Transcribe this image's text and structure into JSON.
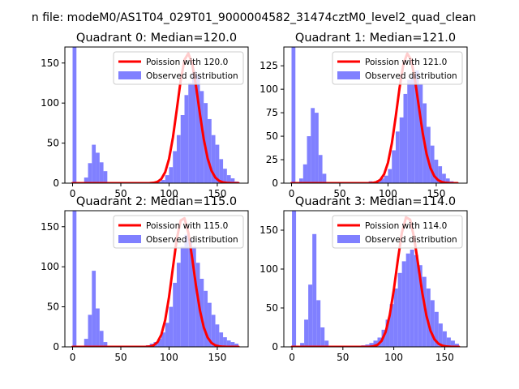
{
  "figure_title": "n file: modeM0/AS1T04_029T01_9000004582_31474cztM0_level2_quad_clean",
  "colors": {
    "poisson": "#ff0000",
    "observed": "#8080ff",
    "axis": "#000000"
  },
  "chart_data": [
    {
      "type": "bar",
      "title": "Quadrant 0: Median=120.0",
      "xlim": [
        -8,
        182
      ],
      "ylim": [
        0,
        170
      ],
      "xticks": [
        0,
        50,
        100,
        150
      ],
      "yticks": [
        0,
        50,
        100,
        150
      ],
      "legend": {
        "position": "top-right",
        "line_label": "Poission with 120.0",
        "bar_label": "Observed distribution"
      },
      "bin_width": 4,
      "bins": [
        [
          0,
          170
        ],
        [
          12,
          7
        ],
        [
          16,
          25
        ],
        [
          20,
          48
        ],
        [
          24,
          38
        ],
        [
          28,
          26
        ],
        [
          32,
          15
        ],
        [
          84,
          1
        ],
        [
          88,
          2
        ],
        [
          92,
          4
        ],
        [
          96,
          10
        ],
        [
          100,
          20
        ],
        [
          104,
          40
        ],
        [
          108,
          60
        ],
        [
          112,
          85
        ],
        [
          116,
          110
        ],
        [
          120,
          125
        ],
        [
          124,
          140
        ],
        [
          128,
          135
        ],
        [
          132,
          115
        ],
        [
          136,
          100
        ],
        [
          140,
          80
        ],
        [
          144,
          60
        ],
        [
          148,
          48
        ],
        [
          152,
          30
        ],
        [
          156,
          18
        ],
        [
          160,
          10
        ],
        [
          164,
          6
        ],
        [
          168,
          2
        ]
      ],
      "poisson": {
        "lambda": 120.0,
        "scale": 162
      }
    },
    {
      "type": "bar",
      "title": "Quadrant 1: Median=121.0",
      "xlim": [
        -8,
        182
      ],
      "ylim": [
        0,
        145
      ],
      "xticks": [
        0,
        50,
        100,
        150
      ],
      "yticks": [
        0,
        25,
        50,
        75,
        100,
        125
      ],
      "legend": {
        "position": "top-right",
        "line_label": "Poission with 121.0",
        "bar_label": "Observed distribution"
      },
      "bin_width": 4,
      "bins": [
        [
          0,
          145
        ],
        [
          8,
          5
        ],
        [
          12,
          20
        ],
        [
          16,
          50
        ],
        [
          20,
          80
        ],
        [
          24,
          75
        ],
        [
          28,
          30
        ],
        [
          32,
          10
        ],
        [
          80,
          2
        ],
        [
          88,
          3
        ],
        [
          92,
          5
        ],
        [
          96,
          8
        ],
        [
          100,
          15
        ],
        [
          104,
          35
        ],
        [
          108,
          55
        ],
        [
          112,
          70
        ],
        [
          116,
          95
        ],
        [
          120,
          110
        ],
        [
          124,
          115
        ],
        [
          128,
          120
        ],
        [
          132,
          105
        ],
        [
          136,
          85
        ],
        [
          140,
          60
        ],
        [
          144,
          40
        ],
        [
          148,
          25
        ],
        [
          152,
          18
        ],
        [
          156,
          10
        ],
        [
          160,
          5
        ],
        [
          164,
          2
        ]
      ],
      "poisson": {
        "lambda": 121.0,
        "scale": 138
      }
    },
    {
      "type": "bar",
      "title": "Quadrant 2: Median=115.0",
      "xlim": [
        -8,
        182
      ],
      "ylim": [
        0,
        170
      ],
      "xticks": [
        0,
        50,
        100,
        150
      ],
      "yticks": [
        0,
        50,
        100,
        150
      ],
      "legend": {
        "position": "top-right",
        "line_label": "Poission with 115.0",
        "bar_label": "Observed distribution"
      },
      "bin_width": 4,
      "bins": [
        [
          0,
          170
        ],
        [
          12,
          10
        ],
        [
          16,
          40
        ],
        [
          20,
          95
        ],
        [
          24,
          48
        ],
        [
          28,
          20
        ],
        [
          32,
          6
        ],
        [
          76,
          2
        ],
        [
          80,
          4
        ],
        [
          84,
          6
        ],
        [
          88,
          10
        ],
        [
          92,
          18
        ],
        [
          96,
          30
        ],
        [
          100,
          50
        ],
        [
          104,
          80
        ],
        [
          108,
          105
        ],
        [
          112,
          125
        ],
        [
          116,
          140
        ],
        [
          120,
          135
        ],
        [
          124,
          125
        ],
        [
          128,
          105
        ],
        [
          132,
          85
        ],
        [
          136,
          70
        ],
        [
          140,
          55
        ],
        [
          144,
          40
        ],
        [
          148,
          28
        ],
        [
          152,
          18
        ],
        [
          156,
          12
        ],
        [
          160,
          8
        ],
        [
          164,
          6
        ],
        [
          168,
          4
        ]
      ],
      "poisson": {
        "lambda": 115.0,
        "scale": 162
      }
    },
    {
      "type": "bar",
      "title": "Quadrant 3: Median=114.0",
      "xlim": [
        -8,
        172
      ],
      "ylim": [
        0,
        175
      ],
      "xticks": [
        0,
        50,
        100,
        150
      ],
      "yticks": [
        0,
        50,
        100,
        150
      ],
      "legend": {
        "position": "top-right",
        "line_label": "Poission with 114.0",
        "bar_label": "Observed distribution"
      },
      "bin_width": 4,
      "bins": [
        [
          0,
          175
        ],
        [
          8,
          5
        ],
        [
          12,
          35
        ],
        [
          16,
          80
        ],
        [
          20,
          145
        ],
        [
          24,
          60
        ],
        [
          28,
          25
        ],
        [
          32,
          8
        ],
        [
          68,
          2
        ],
        [
          72,
          3
        ],
        [
          76,
          5
        ],
        [
          80,
          8
        ],
        [
          84,
          12
        ],
        [
          88,
          22
        ],
        [
          92,
          35
        ],
        [
          96,
          55
        ],
        [
          100,
          75
        ],
        [
          104,
          95
        ],
        [
          108,
          110
        ],
        [
          112,
          120
        ],
        [
          116,
          125
        ],
        [
          120,
          118
        ],
        [
          124,
          105
        ],
        [
          128,
          90
        ],
        [
          132,
          75
        ],
        [
          136,
          60
        ],
        [
          140,
          45
        ],
        [
          144,
          30
        ],
        [
          148,
          20
        ],
        [
          152,
          12
        ],
        [
          156,
          8
        ],
        [
          160,
          4
        ]
      ],
      "poisson": {
        "lambda": 114.0,
        "scale": 168
      }
    }
  ]
}
